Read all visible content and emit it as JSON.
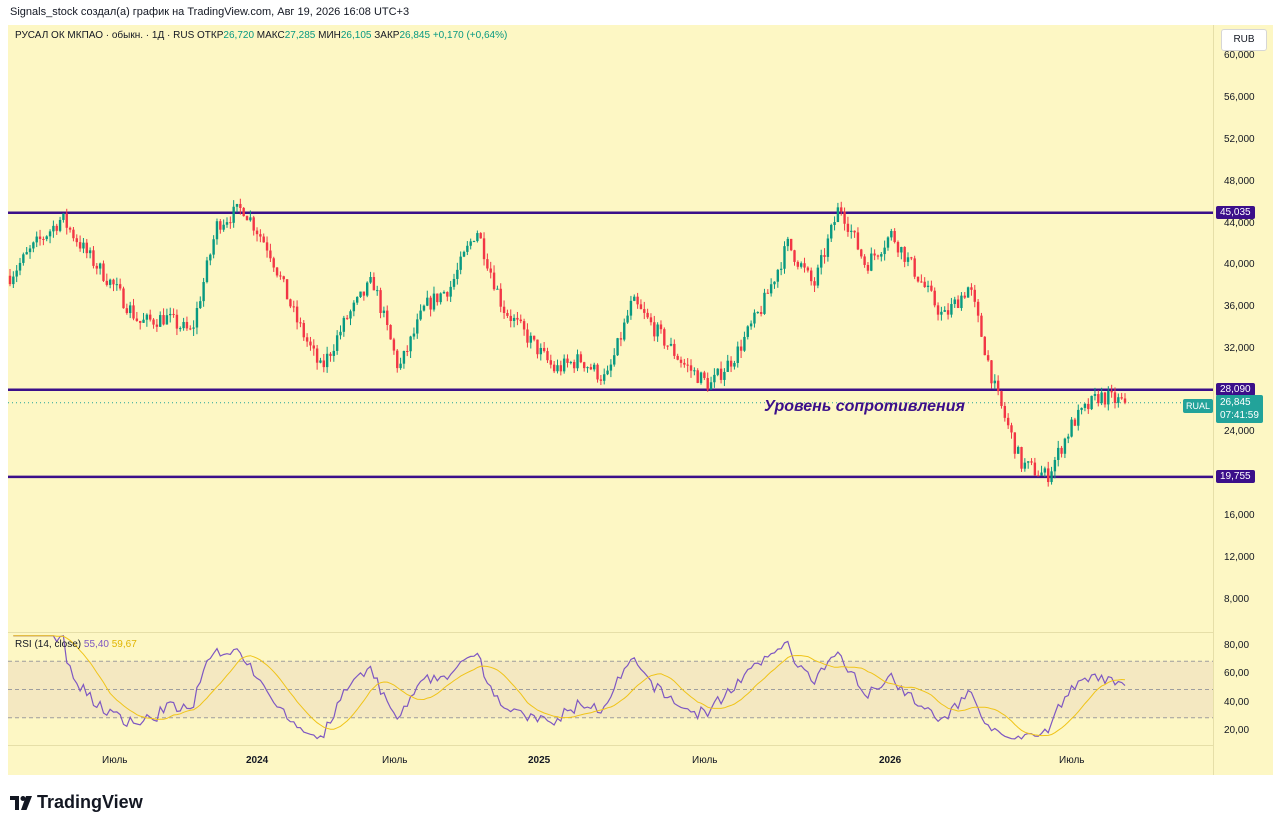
{
  "caption": "Signals_stock создал(а) график на TradingView.com, Авг 19, 2026 16:08 UTC+3",
  "legend": {
    "symbol": "РУСАЛ ОК МКПАО · обыкн. · 1Д · RUS",
    "open_label": "ОТКР",
    "open": "26,720",
    "high_label": "МАКС",
    "high": "27,285",
    "low_label": "МИН",
    "low": "26,105",
    "close_label": "ЗАКР",
    "close": "26,845",
    "change": "+0,170 (+0,64%)"
  },
  "currency_button": "RUB",
  "price_axis": {
    "ticks": [
      "60,000",
      "56,000",
      "52,000",
      "48,000",
      "44,000",
      "40,000",
      "36,000",
      "32,000",
      "24,000",
      "16,000",
      "12,000",
      "8,000"
    ],
    "tick_values": [
      60000,
      56000,
      52000,
      48000,
      44000,
      40000,
      36000,
      32000,
      24000,
      16000,
      12000,
      8000
    ]
  },
  "levels": [
    {
      "value": 45035,
      "label": "45,035"
    },
    {
      "value": 28090,
      "label": "28,090"
    },
    {
      "value": 19755,
      "label": "19,755"
    }
  ],
  "current": {
    "ticker": "RUAL",
    "price": "26,845",
    "countdown": "07:41:59",
    "value": 26845
  },
  "annotation": "Уровень сопротивления",
  "rsi": {
    "title": "RSI (14, close)",
    "value": "55,40",
    "ma_value": "59,67",
    "ticks": [
      "80,00",
      "60,00",
      "40,00",
      "20,00"
    ],
    "tick_values": [
      80,
      60,
      40,
      20
    ],
    "upper_band": 70,
    "lower_band": 30
  },
  "time_axis": {
    "labels": [
      "Июль",
      "2024",
      "Июль",
      "2025",
      "Июль",
      "2026",
      "Июль"
    ],
    "bold": [
      false,
      true,
      false,
      true,
      false,
      true,
      false
    ]
  },
  "chart_data": {
    "type": "candlestick",
    "title": "РУСАЛ ОК МКПАО · обыкн. · 1Д · RUS",
    "price_axis_range": [
      5000,
      63000
    ],
    "time_axis_labels": [
      "Июль",
      "2024",
      "Июль",
      "2025",
      "Июль",
      "2026",
      "Июль"
    ],
    "approx_close_path": [
      39000,
      42000,
      44500,
      41000,
      38000,
      34500,
      35000,
      33500,
      44000,
      45500,
      41500,
      35000,
      30000,
      35000,
      38500,
      30000,
      36000,
      38000,
      43500,
      36000,
      33000,
      30000,
      31000,
      29000,
      36500,
      33500,
      30500,
      28500,
      31500,
      36000,
      42000,
      38000,
      45800,
      40000,
      43000,
      39000,
      35000,
      38000,
      28000,
      21000,
      19800,
      25000,
      27500,
      26845
    ],
    "horizontal_lines": [
      45035,
      28090,
      19755
    ],
    "rsi_range": [
      10,
      90
    ],
    "rsi_bands": [
      70,
      30
    ],
    "colors": {
      "up": "#089981",
      "down": "#f23645",
      "levels": "#3b0f8a",
      "rsi": "#7e57c2",
      "rsi_ma": "#f0c419",
      "background": "#fdf7c4"
    }
  }
}
